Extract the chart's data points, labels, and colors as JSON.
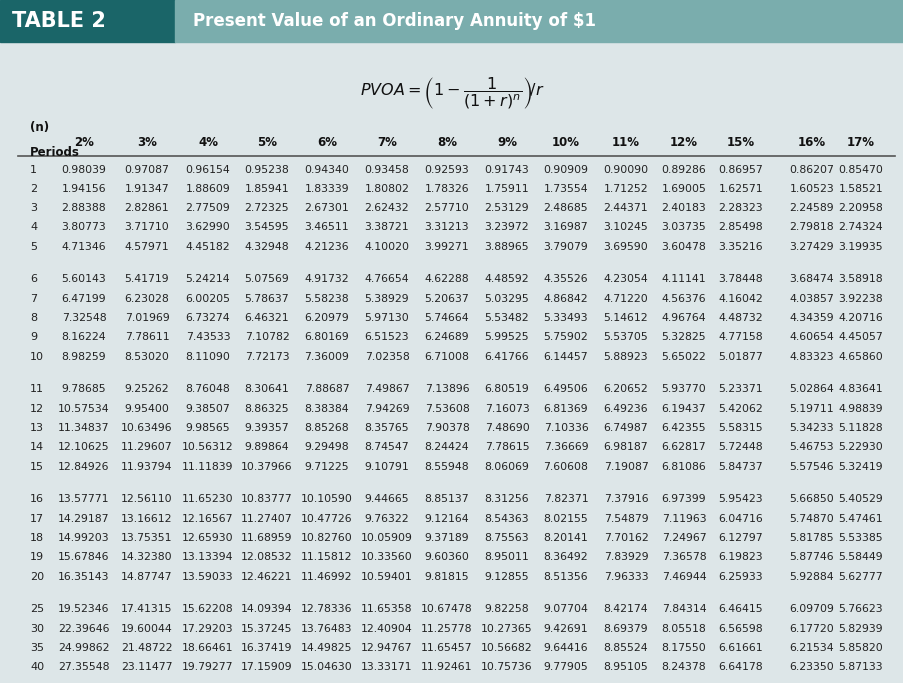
{
  "title_left": "TABLE 2",
  "title_right": "Present Value of an Ordinary Annuity of $1",
  "header_bg_dark": "#1a6568",
  "header_bg_light": "#7aadad",
  "table_bg": "#dde6e8",
  "rate_labels": [
    "2%",
    "3%",
    "4%",
    "5%",
    "6%",
    "7%",
    "8%",
    "9%",
    "10%",
    "11%",
    "12%",
    "15%",
    "16%",
    "17%"
  ],
  "rows": [
    [
      1,
      0.98039,
      0.97087,
      0.96154,
      0.95238,
      0.9434,
      0.93458,
      0.92593,
      0.91743,
      0.90909,
      0.9009,
      0.89286,
      0.86957,
      0.86207,
      0.8547
    ],
    [
      2,
      1.94156,
      1.91347,
      1.88609,
      1.85941,
      1.83339,
      1.80802,
      1.78326,
      1.75911,
      1.73554,
      1.71252,
      1.69005,
      1.62571,
      1.60523,
      1.58521
    ],
    [
      3,
      2.88388,
      2.82861,
      2.77509,
      2.72325,
      2.67301,
      2.62432,
      2.5771,
      2.53129,
      2.48685,
      2.44371,
      2.40183,
      2.28323,
      2.24589,
      2.20958
    ],
    [
      4,
      3.80773,
      3.7171,
      3.6299,
      3.54595,
      3.46511,
      3.38721,
      3.31213,
      3.23972,
      3.16987,
      3.10245,
      3.03735,
      2.85498,
      2.79818,
      2.74324
    ],
    [
      5,
      4.71346,
      4.57971,
      4.45182,
      4.32948,
      4.21236,
      4.1002,
      3.99271,
      3.88965,
      3.79079,
      3.6959,
      3.60478,
      3.35216,
      3.27429,
      3.19935
    ],
    [
      6,
      5.60143,
      5.41719,
      5.24214,
      5.07569,
      4.91732,
      4.76654,
      4.62288,
      4.48592,
      4.35526,
      4.23054,
      4.11141,
      3.78448,
      3.68474,
      3.58918
    ],
    [
      7,
      6.47199,
      6.23028,
      6.00205,
      5.78637,
      5.58238,
      5.38929,
      5.20637,
      5.03295,
      4.86842,
      4.7122,
      4.56376,
      4.16042,
      4.03857,
      3.92238
    ],
    [
      8,
      7.32548,
      7.01969,
      6.73274,
      6.46321,
      6.20979,
      5.9713,
      5.74664,
      5.53482,
      5.33493,
      5.14612,
      4.96764,
      4.48732,
      4.34359,
      4.20716
    ],
    [
      9,
      8.16224,
      7.78611,
      7.43533,
      7.10782,
      6.80169,
      6.51523,
      6.24689,
      5.99525,
      5.75902,
      5.53705,
      5.32825,
      4.77158,
      4.60654,
      4.45057
    ],
    [
      10,
      8.98259,
      8.5302,
      8.1109,
      7.72173,
      7.36009,
      7.02358,
      6.71008,
      6.41766,
      6.14457,
      5.88923,
      5.65022,
      5.01877,
      4.83323,
      4.6586
    ],
    [
      11,
      9.78685,
      9.25262,
      8.76048,
      8.30641,
      7.88687,
      7.49867,
      7.13896,
      6.80519,
      6.49506,
      6.20652,
      5.9377,
      5.23371,
      5.02864,
      4.83641
    ],
    [
      12,
      10.57534,
      9.954,
      9.38507,
      8.86325,
      8.38384,
      7.94269,
      7.53608,
      7.16073,
      6.81369,
      6.49236,
      6.19437,
      5.42062,
      5.19711,
      4.98839
    ],
    [
      13,
      11.34837,
      10.63496,
      9.98565,
      9.39357,
      8.85268,
      8.35765,
      7.90378,
      7.4869,
      7.10336,
      6.74987,
      6.42355,
      5.58315,
      5.34233,
      5.11828
    ],
    [
      14,
      12.10625,
      11.29607,
      10.56312,
      9.89864,
      9.29498,
      8.74547,
      8.24424,
      7.78615,
      7.36669,
      6.98187,
      6.62817,
      5.72448,
      5.46753,
      5.2293
    ],
    [
      15,
      12.84926,
      11.93794,
      11.11839,
      10.37966,
      9.71225,
      9.10791,
      8.55948,
      8.06069,
      7.60608,
      7.19087,
      6.81086,
      5.84737,
      5.57546,
      5.32419
    ],
    [
      16,
      13.57771,
      12.5611,
      11.6523,
      10.83777,
      10.1059,
      9.44665,
      8.85137,
      8.31256,
      7.82371,
      7.37916,
      6.97399,
      5.95423,
      5.6685,
      5.40529
    ],
    [
      17,
      14.29187,
      13.16612,
      12.16567,
      11.27407,
      10.47726,
      9.76322,
      9.12164,
      8.54363,
      8.02155,
      7.54879,
      7.11963,
      6.04716,
      5.7487,
      5.47461
    ],
    [
      18,
      14.99203,
      13.75351,
      12.6593,
      11.68959,
      10.8276,
      10.05909,
      9.37189,
      8.75563,
      8.20141,
      7.70162,
      7.24967,
      6.12797,
      5.81785,
      5.53385
    ],
    [
      19,
      15.67846,
      14.3238,
      13.13394,
      12.08532,
      11.15812,
      10.3356,
      9.6036,
      8.95011,
      8.36492,
      7.83929,
      7.36578,
      6.19823,
      5.87746,
      5.58449
    ],
    [
      20,
      16.35143,
      14.87747,
      13.59033,
      12.46221,
      11.46992,
      10.59401,
      9.81815,
      9.12855,
      8.51356,
      7.96333,
      7.46944,
      6.25933,
      5.92884,
      5.62777
    ],
    [
      25,
      19.52346,
      17.41315,
      15.62208,
      14.09394,
      12.78336,
      11.65358,
      10.67478,
      9.82258,
      9.07704,
      8.42174,
      7.84314,
      6.46415,
      6.09709,
      5.76623
    ],
    [
      30,
      22.39646,
      19.60044,
      17.29203,
      15.37245,
      13.76483,
      12.40904,
      11.25778,
      10.27365,
      9.42691,
      8.69379,
      8.05518,
      6.56598,
      6.1772,
      5.82939
    ],
    [
      35,
      24.99862,
      21.48722,
      18.66461,
      16.37419,
      14.49825,
      12.94767,
      11.65457,
      10.56682,
      9.64416,
      8.85524,
      8.1755,
      6.61661,
      6.21534,
      5.8582
    ],
    [
      40,
      27.35548,
      23.11477,
      19.79277,
      17.15909,
      15.0463,
      13.33171,
      11.92461,
      10.75736,
      9.77905,
      8.95105,
      8.24378,
      6.64178,
      6.2335,
      5.87133
    ]
  ]
}
